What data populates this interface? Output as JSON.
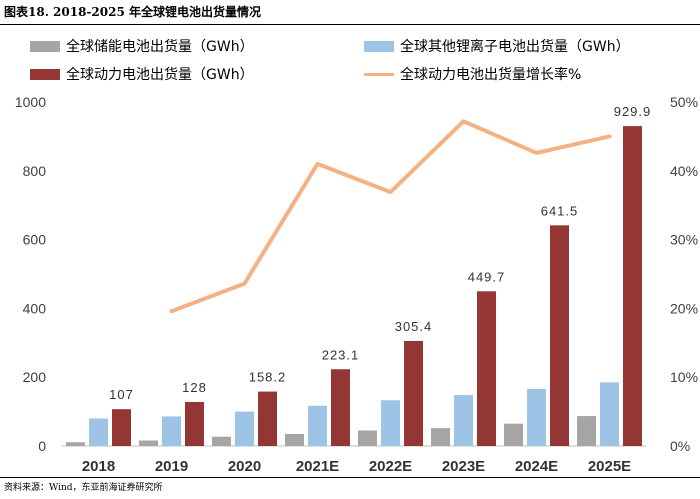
{
  "figure": {
    "title": "图表18. 2018-2025 年全球锂电池出货量情况",
    "source": "资料来源：Wind，东亚前海证券研究所"
  },
  "chart_data": {
    "type": "bar",
    "categories": [
      "2018",
      "2019",
      "2020",
      "2021E",
      "2022E",
      "2023E",
      "2024E",
      "2025E"
    ],
    "series": [
      {
        "name": "全球储能电池出货量（GWh）",
        "kind": "bar",
        "axis": "left",
        "color": "#a5a5a5",
        "show_labels": false,
        "values": [
          11,
          16,
          27,
          35,
          45,
          52,
          65,
          87
        ]
      },
      {
        "name": "全球其他锂离子电池出货量（GWh）",
        "kind": "bar",
        "axis": "left",
        "color": "#9dc3e6",
        "show_labels": false,
        "values": [
          80,
          86,
          100,
          117,
          133,
          148,
          166,
          185
        ]
      },
      {
        "name": "全球动力电池出货量（GWh）",
        "kind": "bar",
        "axis": "left",
        "color": "#943634",
        "show_labels": true,
        "values": [
          107,
          128,
          158.2,
          223.1,
          305.4,
          449.7,
          641.5,
          929.9
        ]
      },
      {
        "name": "全球动力电池出货量增长率%",
        "kind": "line",
        "axis": "right",
        "color": "#f4b183",
        "values": [
          null,
          19.6,
          23.6,
          41.0,
          36.9,
          47.2,
          42.6,
          45.0
        ]
      }
    ],
    "value_labels": [
      "107",
      "128",
      "158.2",
      "223.1",
      "305.4",
      "449.7",
      "641.5",
      "929.9"
    ],
    "y_left": {
      "range": [
        0,
        1000
      ],
      "ticks": [
        "0",
        "200",
        "400",
        "600",
        "800",
        "1000"
      ],
      "tick_values": [
        0,
        200,
        400,
        600,
        800,
        1000
      ]
    },
    "y_right": {
      "range": [
        0,
        50
      ],
      "ticks": [
        "0%",
        "10%",
        "20%",
        "30%",
        "40%",
        "50%"
      ],
      "tick_values": [
        0,
        10,
        20,
        30,
        40,
        50
      ]
    },
    "legend_position": "top",
    "grid": false
  }
}
